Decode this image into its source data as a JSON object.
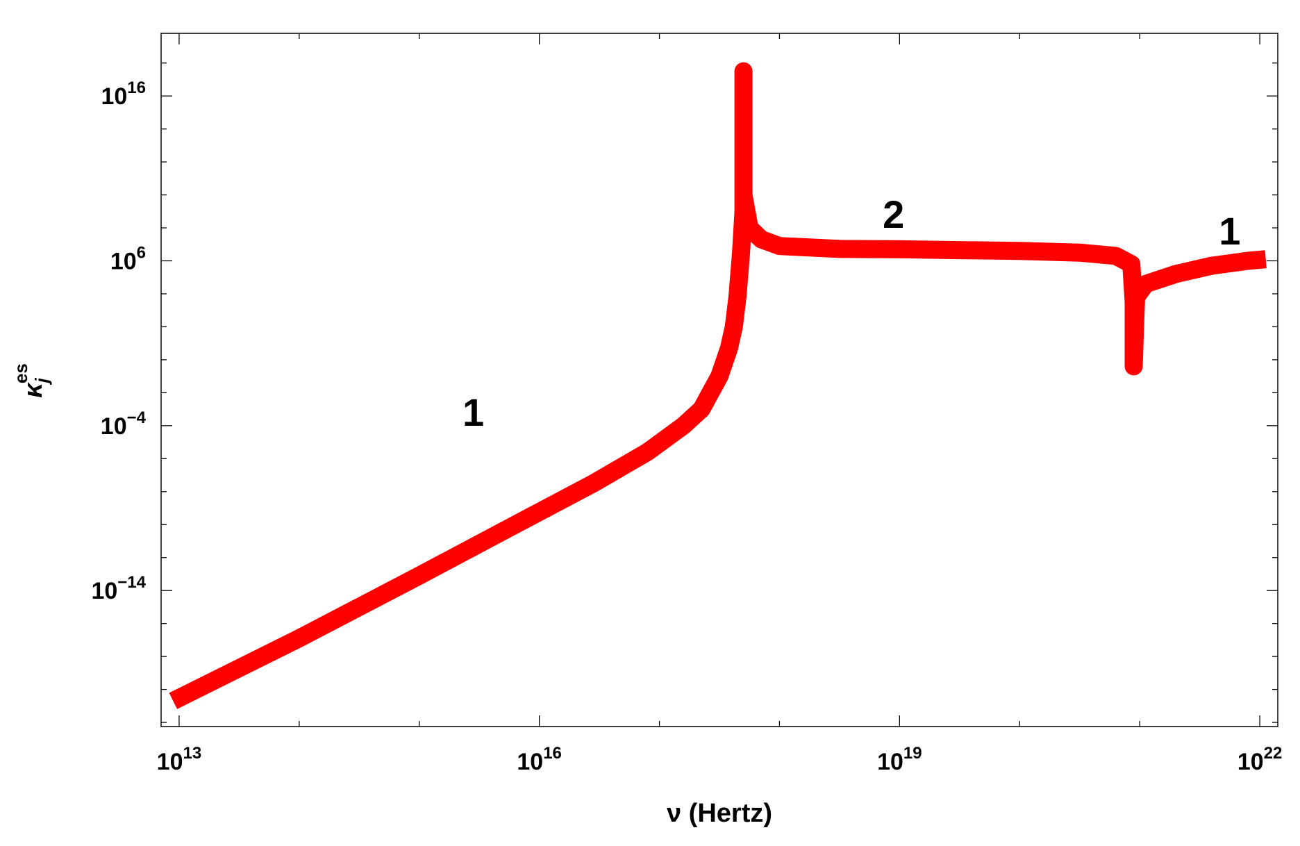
{
  "chart_data": {
    "type": "line",
    "xlabel": "ν (Hertz)",
    "ylabel": "κj es",
    "ylabel_parts": {
      "base": "κ",
      "sub": "j",
      "sup": "es"
    },
    "x_scale": "log",
    "y_scale": "log",
    "xlim_exp": [
      12.85,
      22.15
    ],
    "ylim_exp": [
      -22.25,
      19.8
    ],
    "x_major_ticks": [
      {
        "base": "10",
        "exp": "13",
        "value_exp": 13
      },
      {
        "base": "10",
        "exp": "16",
        "value_exp": 16
      },
      {
        "base": "10",
        "exp": "19",
        "value_exp": 19
      },
      {
        "base": "10",
        "exp": "22",
        "value_exp": 22
      }
    ],
    "y_major_ticks": [
      {
        "base": "10",
        "exp": "−14",
        "value_exp": -14
      },
      {
        "base": "10",
        "exp": "−4",
        "value_exp": -4
      },
      {
        "base": "10",
        "exp": "6",
        "value_exp": 6
      },
      {
        "base": "10",
        "exp": "16",
        "value_exp": 16
      }
    ],
    "grid": false,
    "series": [
      {
        "color": "#ff0000",
        "points": [
          [
            12.95,
            -20.7
          ],
          [
            14.0,
            -16.9
          ],
          [
            15.0,
            -13.1
          ],
          [
            15.8,
            -10.0
          ],
          [
            16.45,
            -7.5
          ],
          [
            16.9,
            -5.6
          ],
          [
            17.2,
            -4.0
          ],
          [
            17.35,
            -3.0
          ],
          [
            17.5,
            -1.0
          ],
          [
            17.58,
            0.7
          ],
          [
            17.62,
            2.0
          ],
          [
            17.65,
            3.8
          ],
          [
            17.68,
            6.5
          ],
          [
            17.7,
            9.0
          ],
          [
            17.7,
            17.5
          ],
          [
            17.7,
            10.0
          ],
          [
            17.75,
            8.0
          ],
          [
            17.85,
            7.3
          ],
          [
            18.0,
            6.9
          ],
          [
            18.5,
            6.72
          ],
          [
            19.0,
            6.7
          ],
          [
            19.5,
            6.65
          ],
          [
            20.0,
            6.6
          ],
          [
            20.5,
            6.5
          ],
          [
            20.8,
            6.3
          ],
          [
            20.93,
            5.8
          ],
          [
            20.95,
            3.5
          ],
          [
            20.95,
            -0.4
          ],
          [
            20.97,
            3.8
          ],
          [
            21.05,
            4.6
          ],
          [
            21.3,
            5.2
          ],
          [
            21.6,
            5.7
          ],
          [
            21.9,
            6.0
          ],
          [
            22.05,
            6.1
          ]
        ]
      }
    ],
    "annotations": [
      {
        "text": "1",
        "x_exp": 15.45,
        "y_exp": -4.0
      },
      {
        "text": "2",
        "x_exp": 18.95,
        "y_exp": 8.0
      },
      {
        "text": "1",
        "x_exp": 21.75,
        "y_exp": 7.0
      }
    ]
  }
}
